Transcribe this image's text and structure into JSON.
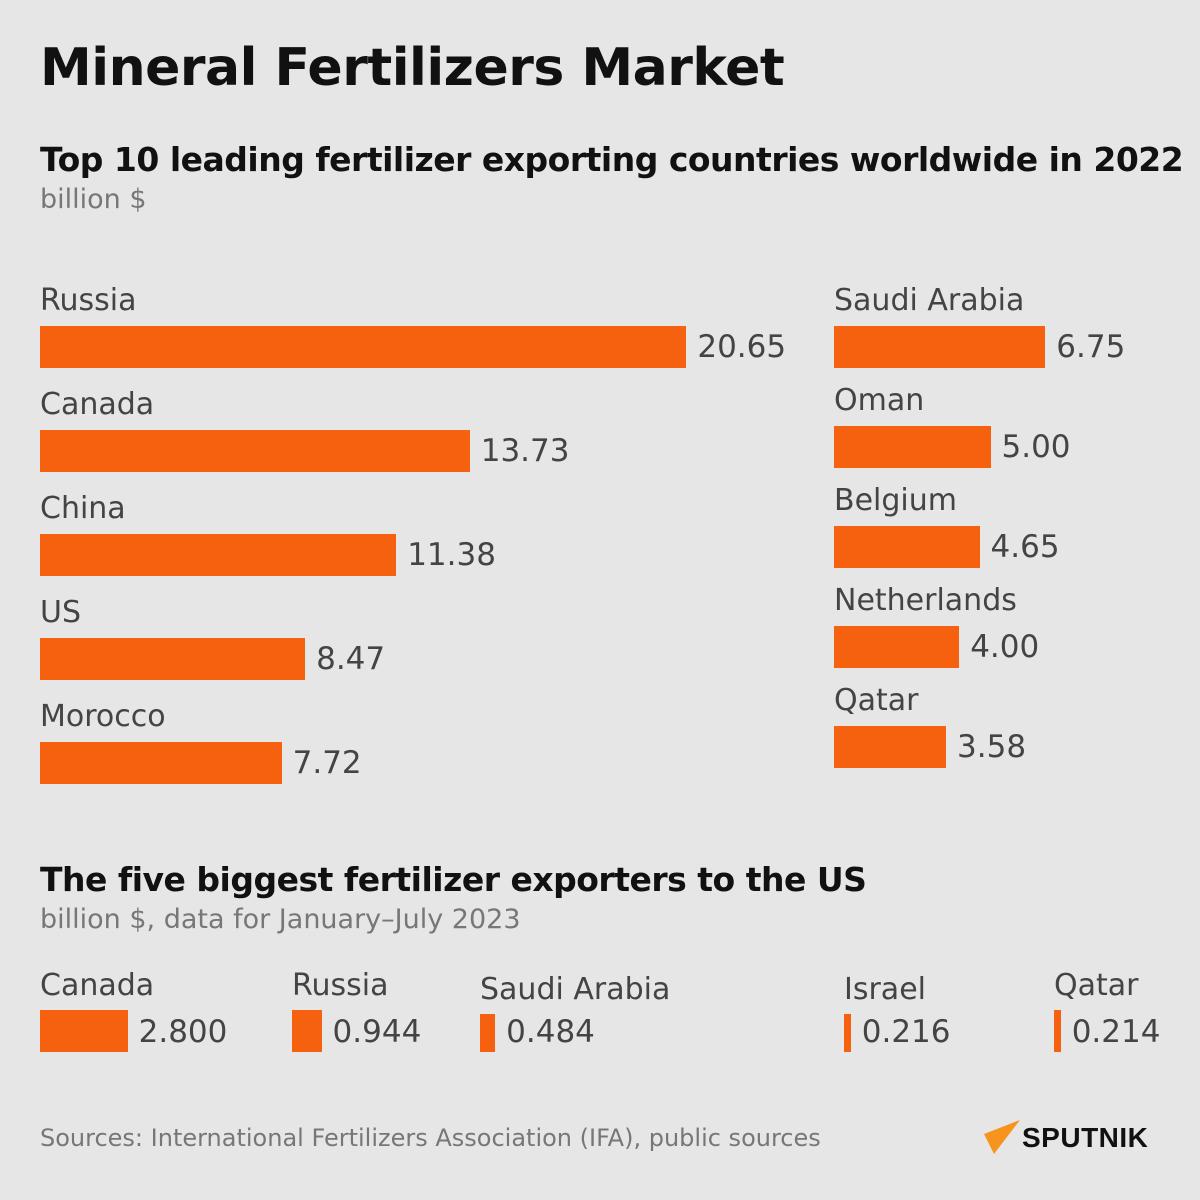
{
  "title": "Mineral Fertilizers Market",
  "colors": {
    "bar": "#f5610f",
    "background": "#e6e6e6"
  },
  "chart_data": [
    {
      "type": "bar",
      "orientation": "horizontal",
      "title": "Top 10 leading fertilizer exporting countries worldwide in 2022",
      "unit": "billion $",
      "categories": [
        "Russia",
        "Canada",
        "China",
        "US",
        "Morocco",
        "Saudi Arabia",
        "Oman",
        "Belgium",
        "Netherlands",
        "Qatar"
      ],
      "values": [
        20.65,
        13.73,
        11.38,
        8.47,
        7.72,
        6.75,
        5.0,
        4.65,
        4.0,
        3.58
      ],
      "labels": [
        "20.65",
        "13.73",
        "11.38",
        "8.47",
        "7.72",
        "6.75",
        "5.00",
        "4.65",
        "4.00",
        "3.58"
      ]
    },
    {
      "type": "bar",
      "orientation": "horizontal",
      "title": "The five biggest fertilizer exporters to the US",
      "unit": "billion $, data for January–July 2023",
      "categories": [
        "Canada",
        "Russia",
        "Saudi Arabia",
        "Israel",
        "Qatar"
      ],
      "values": [
        2.8,
        0.944,
        0.484,
        0.216,
        0.214
      ],
      "labels": [
        "2.800",
        "0.944",
        "0.484",
        "0.216",
        "0.214"
      ]
    }
  ],
  "footer": {
    "sources": "Sources: International Fertilizers Association (IFA), public sources",
    "logo": "SPUTNIK"
  }
}
